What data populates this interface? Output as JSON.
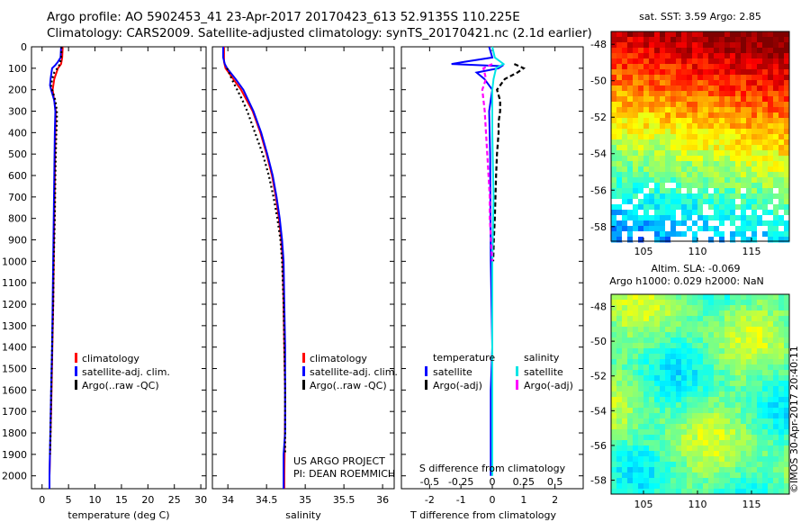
{
  "header": {
    "line1": "Argo profile: AO 5902453_41 23-Apr-2017 20170423_613 52.9135S 110.225E",
    "line2": "Climatology: CARS2009. Satellite-adjusted climatology: synTS_20170421.nc (2.1d earlier)"
  },
  "colors": {
    "climatology": "#ff0000",
    "satellite": "#0000ff",
    "argo": "#000000",
    "salinity_satellite": "#00e5e5",
    "salinity_argo": "#ff00ff"
  },
  "depth_axis": {
    "ticks": [
      "0",
      "100",
      "200",
      "300",
      "400",
      "500",
      "600",
      "700",
      "800",
      "900",
      "1000",
      "1100",
      "1200",
      "1300",
      "1400",
      "1500",
      "1600",
      "1700",
      "1800",
      "1900",
      "2000"
    ]
  },
  "chart_data": [
    {
      "type": "line",
      "id": "temperature",
      "xlabel": "temperature (deg C)",
      "xlim": [
        -2,
        31
      ],
      "ylim": [
        2060,
        0
      ],
      "xticks": [
        "0",
        "5",
        "10",
        "15",
        "20",
        "25",
        "30"
      ],
      "legend": [
        "climatology",
        "satellite-adj. clim.",
        "Argo(..raw -QC)"
      ],
      "series": [
        {
          "name": "climatology",
          "depth": [
            0,
            50,
            80,
            100,
            150,
            200,
            300,
            400,
            600,
            800,
            1000,
            1200,
            1400,
            1600,
            1700,
            1800,
            2000,
            2060
          ],
          "values": [
            3.9,
            3.8,
            3.6,
            3.0,
            2.3,
            2.0,
            2.6,
            2.5,
            2.4,
            2.3,
            2.2,
            2.1,
            1.95,
            1.8,
            1.7,
            1.6,
            1.4,
            1.4
          ]
        },
        {
          "name": "satellite-adj. clim.",
          "depth": [
            0,
            50,
            70,
            85,
            100,
            150,
            180,
            200,
            250,
            300,
            400,
            600,
            800,
            1000,
            1200,
            1400,
            1600,
            1800,
            2000,
            2060
          ],
          "values": [
            3.6,
            3.5,
            3.0,
            2.5,
            1.9,
            1.6,
            1.5,
            1.7,
            2.3,
            2.5,
            2.4,
            2.3,
            2.2,
            2.1,
            2.0,
            1.9,
            1.7,
            1.55,
            1.4,
            1.4
          ]
        },
        {
          "name": "Argo(..raw -QC)",
          "depth": [
            0,
            50,
            80,
            100,
            120,
            150,
            180,
            200,
            250,
            300,
            350,
            400,
            500,
            600,
            800,
            1000,
            1200,
            1400,
            1600,
            1800,
            1900
          ],
          "values": [
            3.7,
            3.6,
            3.4,
            2.9,
            2.3,
            1.9,
            1.7,
            1.9,
            2.5,
            2.8,
            2.8,
            2.7,
            2.6,
            2.5,
            2.4,
            2.2,
            2.1,
            1.9,
            1.75,
            1.6,
            1.5
          ]
        }
      ]
    },
    {
      "type": "line",
      "id": "salinity",
      "xlabel": "salinity",
      "xlim": [
        33.8,
        36.15
      ],
      "ylim": [
        2060,
        0
      ],
      "xticks": [
        "34",
        "34.5",
        "35",
        "35.5",
        "36"
      ],
      "legend": [
        "climatology",
        "satellite-adj. clim.",
        "Argo(..raw -QC)"
      ],
      "annotation": [
        "US ARGO PROJECT",
        "PI: DEAN ROEMMICH"
      ],
      "series": [
        {
          "name": "climatology",
          "depth": [
            0,
            70,
            100,
            150,
            200,
            300,
            400,
            500,
            600,
            700,
            800,
            900,
            1000,
            1200,
            1400,
            1600,
            1700,
            2000,
            2060
          ],
          "values": [
            33.95,
            33.95,
            33.97,
            34.07,
            34.17,
            34.32,
            34.42,
            34.5,
            34.57,
            34.62,
            34.66,
            34.69,
            34.71,
            34.72,
            34.73,
            34.74,
            34.74,
            34.73,
            34.73
          ]
        },
        {
          "name": "satellite-adj. clim.",
          "depth": [
            0,
            50,
            80,
            100,
            150,
            200,
            300,
            400,
            500,
            600,
            700,
            800,
            900,
            1000,
            1200,
            1400,
            1600,
            1800,
            1900,
            2000,
            2060
          ],
          "values": [
            33.94,
            33.94,
            33.96,
            33.99,
            34.1,
            34.2,
            34.33,
            34.43,
            34.51,
            34.58,
            34.63,
            34.67,
            34.7,
            34.72,
            34.73,
            34.74,
            34.74,
            34.74,
            34.72,
            34.72,
            34.72
          ]
        },
        {
          "name": "Argo(..raw -QC)",
          "depth": [
            100,
            150,
            200,
            250,
            300,
            400,
            500,
            600,
            700,
            800,
            900,
            1000,
            1200,
            1400,
            1600,
            1800,
            1900
          ],
          "values": [
            33.99,
            34.05,
            34.12,
            34.19,
            34.25,
            34.35,
            34.45,
            34.53,
            34.59,
            34.64,
            34.68,
            34.7,
            34.72,
            34.73,
            34.74,
            34.74,
            34.74
          ]
        }
      ]
    },
    {
      "type": "line",
      "id": "difference",
      "xlabel": "T difference from climatology",
      "xlabel_top": "S difference from climatology",
      "xlim": [
        -2.9,
        2.9
      ],
      "ylim": [
        2060,
        0
      ],
      "xticks": [
        "-2",
        "-1",
        "0",
        "1",
        "2"
      ],
      "xticks_top": [
        "-0.5",
        "-0.25",
        "0",
        "0.25",
        "0.5"
      ],
      "legend_headers": [
        "temperature",
        "salinity"
      ],
      "legend": [
        "satellite",
        "Argo(-adj)",
        "satellite",
        "Argo(-adj)"
      ],
      "series": [
        {
          "name": "temperature satellite",
          "depth": [
            0,
            50,
            70,
            80,
            90,
            100,
            120,
            150,
            200,
            300,
            500,
            1000,
            1400,
            1600,
            2000
          ],
          "values": [
            -0.1,
            0.0,
            -0.9,
            -1.3,
            0.3,
            0.2,
            -0.5,
            -0.25,
            0.0,
            -0.1,
            -0.07,
            -0.05,
            0.0,
            -0.05,
            -0.05
          ]
        },
        {
          "name": "temperature Argo(-adj)",
          "depth": [
            80,
            100,
            120,
            150,
            200,
            250,
            300,
            350,
            400,
            500,
            600,
            700,
            800,
            900,
            1000
          ],
          "values": [
            0.7,
            1.0,
            0.8,
            0.4,
            0.15,
            0.25,
            0.25,
            0.2,
            0.2,
            0.15,
            0.12,
            0.1,
            0.08,
            0.05,
            0.03
          ]
        },
        {
          "name": "salinity satellite",
          "depth": [
            0,
            50,
            80,
            100,
            150,
            200,
            400,
            700,
            1000,
            1400,
            1700,
            2000
          ],
          "values": [
            0.0,
            0.02,
            0.09,
            0.03,
            0.01,
            0.0,
            0.0,
            0.01,
            0.0,
            0.0,
            0.0,
            0.0
          ]
        },
        {
          "name": "salinity Argo(-adj)",
          "depth": [
            80,
            100,
            150,
            200,
            300,
            400,
            500,
            600,
            700,
            800,
            900,
            1000
          ],
          "values": [
            0.0,
            -0.07,
            -0.05,
            -0.08,
            -0.06,
            -0.05,
            -0.04,
            -0.03,
            -0.02,
            -0.02,
            -0.01,
            0.0
          ]
        }
      ]
    },
    {
      "type": "heatmap",
      "id": "sst-map",
      "title": "sat. SST: 3.59 Argo: 2.85",
      "xticks": [
        "105",
        "110",
        "115"
      ],
      "yticks": [
        "-48",
        "-50",
        "-52",
        "-54",
        "-56",
        "-58"
      ],
      "xlim": [
        102,
        118.5
      ],
      "ylim": [
        -58.8,
        -47.3
      ]
    },
    {
      "type": "heatmap",
      "id": "sla-map",
      "title_lines": [
        "Altim. SLA: -0.069",
        "Argo h1000: 0.029 h2000: NaN"
      ],
      "xticks": [
        "105",
        "110",
        "115"
      ],
      "yticks": [
        "-48",
        "-50",
        "-52",
        "-54",
        "-56",
        "-58"
      ],
      "xlim": [
        102,
        118.5
      ],
      "ylim": [
        -58.8,
        -47.3
      ]
    }
  ],
  "watermark": "©IMOS 30-Apr-2017 20:40:11"
}
